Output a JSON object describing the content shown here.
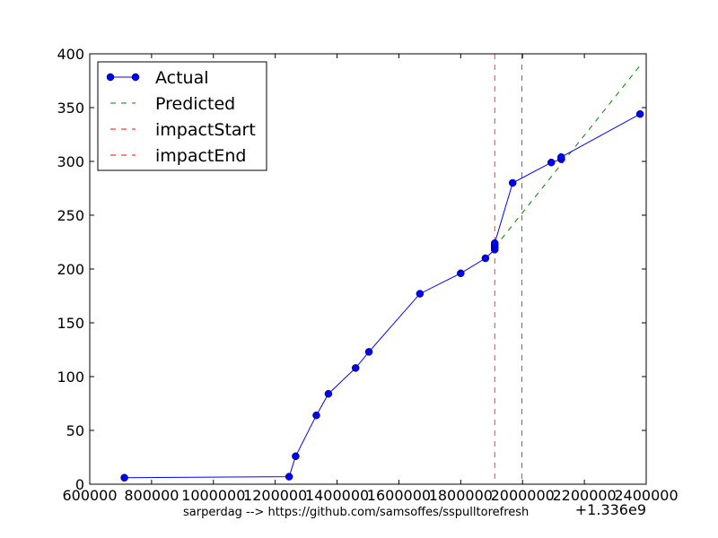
{
  "chart_data": {
    "type": "line",
    "title": "",
    "xlabel": "",
    "ylabel": "",
    "x_offset_label": "+1.336e9",
    "caption": "sarperdag --> https://github.com/samsoffes/sspulltorefresh",
    "xlim": [
      600000,
      2400000
    ],
    "ylim": [
      0,
      400
    ],
    "x_ticks": [
      600000,
      800000,
      1000000,
      1200000,
      1400000,
      1600000,
      1800000,
      2000000,
      2200000,
      2400000
    ],
    "x_tick_labels": [
      "600000",
      "800000",
      "1000000",
      "1200000",
      "1400000",
      "1600000",
      "1800000",
      "2000000",
      "2200000",
      "2400000"
    ],
    "y_ticks": [
      0,
      50,
      100,
      150,
      200,
      250,
      300,
      350,
      400
    ],
    "y_tick_labels": [
      "0",
      "50",
      "100",
      "150",
      "200",
      "250",
      "300",
      "350",
      "400"
    ],
    "grid": false,
    "legend_position": "top-left",
    "series": [
      {
        "name": "Actual",
        "style": "solid-markers",
        "color": "#0000ff",
        "points": [
          [
            712000,
            6
          ],
          [
            1245000,
            7
          ],
          [
            1266000,
            26
          ],
          [
            1333000,
            64
          ],
          [
            1372000,
            84
          ],
          [
            1460000,
            108
          ],
          [
            1503000,
            123
          ],
          [
            1668000,
            177
          ],
          [
            1800000,
            196
          ],
          [
            1880000,
            210
          ],
          [
            1910000,
            218
          ],
          [
            1910000,
            220
          ],
          [
            1910000,
            222
          ],
          [
            1910000,
            224
          ],
          [
            1968000,
            280
          ],
          [
            2093000,
            299
          ],
          [
            2125000,
            302
          ],
          [
            2125000,
            304
          ],
          [
            2380000,
            344
          ]
        ]
      },
      {
        "name": "Predicted",
        "style": "dashed",
        "color": "#008000",
        "points": [
          [
            1910000,
            220
          ],
          [
            2380000,
            389
          ]
        ]
      },
      {
        "name": "impactStart",
        "style": "dashed-vertical",
        "color": "#ff0000",
        "x": 1910000
      },
      {
        "name": "impactEnd",
        "style": "dashed-vertical",
        "color": "#ff0000",
        "x": 1998000
      }
    ]
  }
}
